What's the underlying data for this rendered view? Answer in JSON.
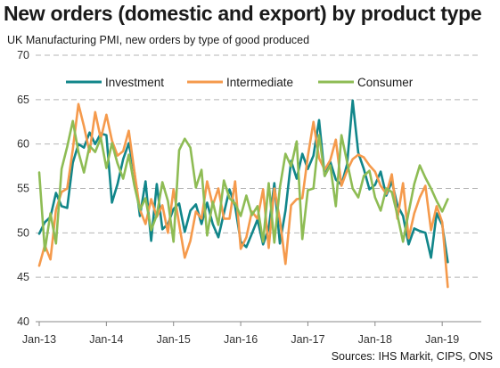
{
  "header": {
    "title": "New orders (domestic and export) by product type",
    "subtitle": "UK Manufacturing PMI, new orders by type of good produced"
  },
  "footer": {
    "source": "Sources: IHS Markit, CIPS, ONS"
  },
  "chart_data": {
    "type": "line",
    "ylim": [
      40,
      70
    ],
    "yticks": [
      40,
      45,
      50,
      55,
      60,
      65,
      70
    ],
    "grid": true,
    "legend_position": "top",
    "x_start": "Jan-13",
    "x_tick_labels": [
      "Jan-13",
      "Jan-14",
      "Jan-15",
      "Jan-16",
      "Jan-17",
      "Jan-18",
      "Jan-19"
    ],
    "x_ticks_every": 12,
    "series": [
      {
        "name": "Investment",
        "color": "#11868a",
        "values": [
          49.9,
          51.2,
          51.8,
          54.5,
          53.0,
          52.8,
          57.9,
          60.0,
          59.6,
          61.3,
          60.0,
          61.2,
          61.0,
          53.4,
          55.5,
          58.3,
          60.1,
          56.8,
          51.9,
          55.8,
          49.1,
          55.5,
          50.4,
          51.0,
          52.7,
          53.3,
          50.1,
          52.5,
          53.2,
          51.0,
          53.4,
          51.0,
          49.5,
          52.2,
          54.9,
          53.0,
          49.0,
          48.4,
          49.9,
          51.5,
          48.7,
          50.5,
          55.6,
          48.8,
          52.5,
          58.1,
          56.1,
          58.9,
          57.2,
          58.7,
          62.7,
          56.4,
          58.0,
          56.0,
          55.4,
          57.7,
          64.9,
          59.0,
          57.2,
          54.9,
          55.4,
          56.9,
          54.2,
          55.8,
          53.1,
          51.9,
          48.7,
          50.5,
          50.2,
          50.0,
          47.2,
          52.2,
          50.9,
          46.7
        ]
      },
      {
        "name": "Intermediate",
        "color": "#f59a4c",
        "values": [
          46.3,
          48.6,
          47.0,
          52.6,
          54.6,
          55.0,
          59.4,
          64.5,
          62.0,
          59.1,
          63.6,
          60.6,
          63.3,
          60.4,
          58.7,
          59.2,
          61.5,
          56.9,
          52.6,
          51.0,
          53.8,
          51.8,
          53.1,
          50.0,
          54.9,
          51.0,
          47.2,
          49.1,
          52.4,
          51.6,
          55.8,
          53.1,
          55.0,
          51.6,
          51.6,
          55.8,
          48.2,
          49.5,
          52.4,
          51.6,
          54.9,
          48.3,
          55.0,
          51.5,
          46.5,
          53.1,
          53.8,
          53.9,
          58.6,
          62.5,
          58.4,
          57.1,
          58.2,
          60.5,
          55.3,
          57.0,
          58.3,
          58.8,
          58.5,
          57.6,
          56.9,
          55.3,
          54.4,
          56.6,
          51.6,
          55.6,
          49.4,
          52.2,
          54.0,
          55.3,
          50.3,
          53.0,
          51.2,
          43.9
        ]
      },
      {
        "name": "Consumer",
        "color": "#8ebc54",
        "values": [
          56.8,
          48.0,
          52.2,
          48.8,
          57.2,
          59.7,
          62.6,
          59.1,
          56.8,
          59.8,
          59.1,
          60.7,
          57.3,
          60.1,
          57.8,
          56.1,
          58.8,
          55.3,
          52.6,
          53.9,
          50.3,
          52.0,
          55.7,
          53.6,
          49.0,
          59.3,
          60.6,
          59.6,
          55.1,
          57.1,
          49.7,
          53.5,
          50.9,
          55.9,
          53.9,
          53.3,
          51.9,
          54.2,
          52.0,
          53.0,
          49.0,
          55.6,
          48.9,
          55.1,
          58.9,
          57.5,
          60.3,
          49.3,
          54.8,
          55.0,
          61.0,
          56.4,
          57.6,
          53.0,
          61.0,
          58.0,
          55.0,
          54.0,
          56.4,
          57.0,
          54.0,
          52.5,
          55.0,
          54.6,
          52.0,
          49.0,
          52.3,
          55.5,
          57.6,
          56.2,
          55.0,
          53.6,
          52.4,
          53.8
        ]
      }
    ]
  }
}
